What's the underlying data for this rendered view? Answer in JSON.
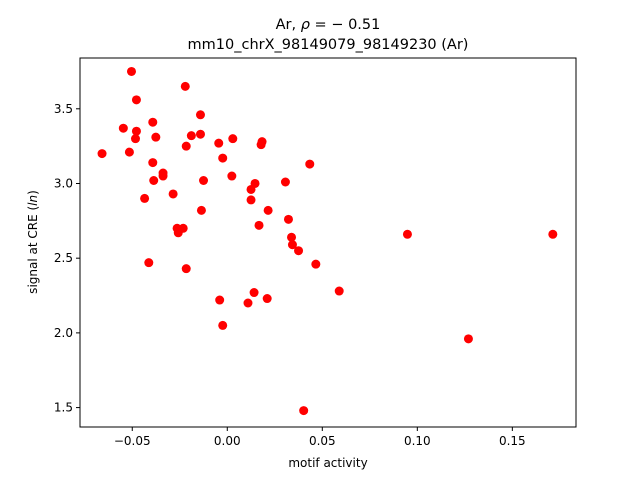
{
  "chart_data": {
    "type": "scatter",
    "title_line1_prefix": "Ar, ",
    "title_line1_rho": "ρ",
    "title_line1_suffix": " = − 0.51",
    "title_line2": "mm10_chrX_98149079_98149230 (Ar)",
    "xlabel": "motif activity",
    "ylabel_prefix": "signal at CRE (",
    "ylabel_italic": "ln",
    "ylabel_suffix": ")",
    "xlim": [
      -0.0775,
      0.1835
    ],
    "ylim": [
      1.37,
      3.84
    ],
    "x_ticks": [
      {
        "value": -0.05,
        "label": "−0.05"
      },
      {
        "value": 0.0,
        "label": "0.00"
      },
      {
        "value": 0.05,
        "label": "0.05"
      },
      {
        "value": 0.1,
        "label": "0.10"
      },
      {
        "value": 0.15,
        "label": "0.15"
      }
    ],
    "y_ticks": [
      {
        "value": 1.5,
        "label": "1.5"
      },
      {
        "value": 2.0,
        "label": "2.0"
      },
      {
        "value": 2.5,
        "label": "2.5"
      },
      {
        "value": 3.0,
        "label": "3.0"
      },
      {
        "value": 3.5,
        "label": "3.5"
      }
    ],
    "marker_color": "#ff0000",
    "grid": false,
    "points": [
      {
        "x": -0.0659,
        "y": 3.2
      },
      {
        "x": -0.0547,
        "y": 3.37
      },
      {
        "x": -0.0515,
        "y": 3.21
      },
      {
        "x": -0.0504,
        "y": 3.75
      },
      {
        "x": -0.0483,
        "y": 3.3
      },
      {
        "x": -0.0478,
        "y": 3.35
      },
      {
        "x": -0.0478,
        "y": 3.56
      },
      {
        "x": -0.0435,
        "y": 2.9
      },
      {
        "x": -0.0413,
        "y": 2.47
      },
      {
        "x": -0.0392,
        "y": 3.41
      },
      {
        "x": -0.0392,
        "y": 3.14
      },
      {
        "x": -0.0387,
        "y": 3.02
      },
      {
        "x": -0.0376,
        "y": 3.31
      },
      {
        "x": -0.0338,
        "y": 3.07
      },
      {
        "x": -0.0338,
        "y": 3.05
      },
      {
        "x": -0.0285,
        "y": 2.93
      },
      {
        "x": -0.0264,
        "y": 2.7
      },
      {
        "x": -0.0258,
        "y": 2.67
      },
      {
        "x": -0.0232,
        "y": 2.7
      },
      {
        "x": -0.0221,
        "y": 3.65
      },
      {
        "x": -0.0216,
        "y": 3.25
      },
      {
        "x": -0.0216,
        "y": 2.43
      },
      {
        "x": -0.0189,
        "y": 3.32
      },
      {
        "x": -0.0141,
        "y": 3.33
      },
      {
        "x": -0.0141,
        "y": 3.46
      },
      {
        "x": -0.0136,
        "y": 2.82
      },
      {
        "x": -0.0125,
        "y": 3.02
      },
      {
        "x": -0.0045,
        "y": 3.27
      },
      {
        "x": -0.004,
        "y": 2.22
      },
      {
        "x": -0.0024,
        "y": 2.05
      },
      {
        "x": -0.0024,
        "y": 3.17
      },
      {
        "x": 0.0024,
        "y": 3.05
      },
      {
        "x": 0.0029,
        "y": 3.3
      },
      {
        "x": 0.0109,
        "y": 2.2
      },
      {
        "x": 0.0125,
        "y": 2.96
      },
      {
        "x": 0.0125,
        "y": 2.89
      },
      {
        "x": 0.0141,
        "y": 2.27
      },
      {
        "x": 0.0146,
        "y": 3.0
      },
      {
        "x": 0.0167,
        "y": 2.72
      },
      {
        "x": 0.0178,
        "y": 3.26
      },
      {
        "x": 0.0183,
        "y": 3.28
      },
      {
        "x": 0.021,
        "y": 2.23
      },
      {
        "x": 0.0215,
        "y": 2.82
      },
      {
        "x": 0.0306,
        "y": 3.01
      },
      {
        "x": 0.0322,
        "y": 2.76
      },
      {
        "x": 0.0338,
        "y": 2.64
      },
      {
        "x": 0.0343,
        "y": 2.59
      },
      {
        "x": 0.0375,
        "y": 2.55
      },
      {
        "x": 0.0402,
        "y": 1.48
      },
      {
        "x": 0.0434,
        "y": 3.13
      },
      {
        "x": 0.0466,
        "y": 2.46
      },
      {
        "x": 0.0589,
        "y": 2.28
      },
      {
        "x": 0.0948,
        "y": 2.66
      },
      {
        "x": 0.1269,
        "y": 1.96
      },
      {
        "x": 0.1713,
        "y": 2.66
      }
    ]
  }
}
